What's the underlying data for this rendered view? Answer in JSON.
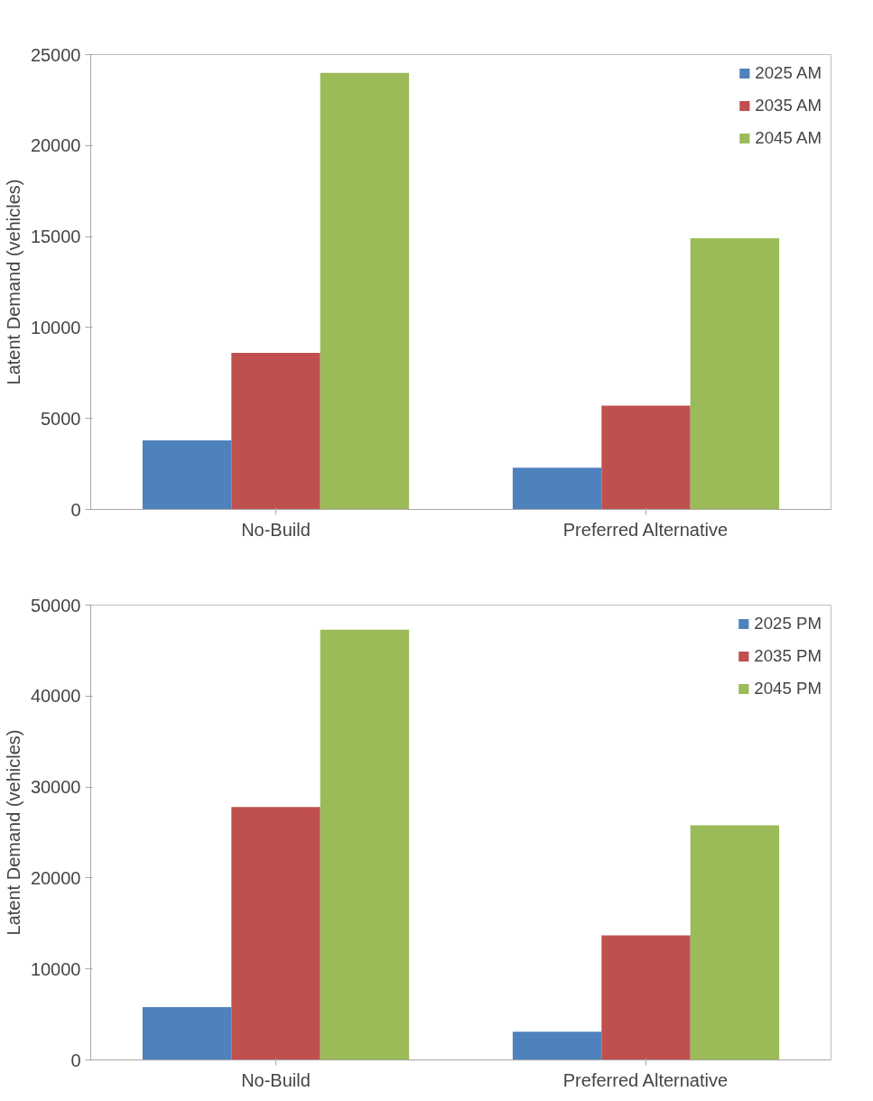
{
  "chart_data": [
    {
      "type": "bar",
      "ylabel": "Latent Demand (vehicles)",
      "categories": [
        "No-Build",
        "Preferred Alternative"
      ],
      "ylim": [
        0,
        25000
      ],
      "yticks": [
        0,
        5000,
        10000,
        15000,
        20000,
        25000
      ],
      "grid": false,
      "legend": "top right",
      "series": [
        {
          "name": "2025 AM",
          "color": "#4f81bd",
          "values": [
            3800,
            2300
          ]
        },
        {
          "name": "2035 AM",
          "color": "#c0504d",
          "values": [
            8600,
            5700
          ]
        },
        {
          "name": "2045 AM",
          "color": "#9bbb59",
          "values": [
            24000,
            14900
          ]
        }
      ]
    },
    {
      "type": "bar",
      "ylabel": "Latent Demand (vehicles)",
      "categories": [
        "No-Build",
        "Preferred Alternative"
      ],
      "ylim": [
        0,
        50000
      ],
      "yticks": [
        0,
        10000,
        20000,
        30000,
        40000,
        50000
      ],
      "grid": false,
      "legend": "top right",
      "series": [
        {
          "name": "2025 PM",
          "color": "#4f81bd",
          "values": [
            5800,
            3100
          ]
        },
        {
          "name": "2035 PM",
          "color": "#c0504d",
          "values": [
            27800,
            13700
          ]
        },
        {
          "name": "2045 PM",
          "color": "#9bbb59",
          "values": [
            47300,
            25800
          ]
        }
      ]
    }
  ]
}
